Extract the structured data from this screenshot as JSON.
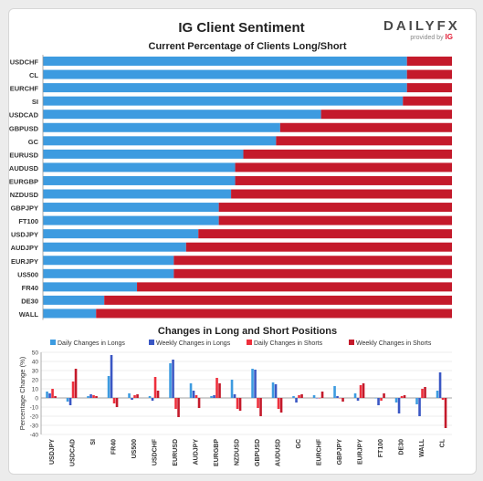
{
  "header": {
    "title": "IG Client Sentiment",
    "logo_text": "DAILYFX",
    "provided_by": "provided by",
    "provider": "IG"
  },
  "colors": {
    "long": "#3d9be0",
    "short": "#c41a2b",
    "weekly_long": "#3a57c4",
    "daily_short": "#ee2f3c",
    "axis": "#666666",
    "grid": "#dddddd"
  },
  "chart_data": [
    {
      "type": "bar",
      "orientation": "horizontal",
      "stacked": true,
      "title": "Current Percentage of Clients Long/Short",
      "categories": [
        "USDCHF",
        "CL",
        "EURCHF",
        "SI",
        "USDCAD",
        "GBPUSD",
        "GC",
        "EURUSD",
        "AUDUSD",
        "EURGBP",
        "NZDUSD",
        "GBPJPY",
        "FT100",
        "USDJPY",
        "AUDJPY",
        "EURJPY",
        "US500",
        "FR40",
        "DE30",
        "WALL"
      ],
      "series": [
        {
          "values": [
            89,
            89,
            89,
            88,
            68,
            58,
            57,
            49,
            47,
            47,
            46,
            43,
            43,
            38,
            35,
            32,
            32,
            23,
            15,
            13
          ]
        },
        {
          "values": [
            11,
            11,
            11,
            12,
            32,
            42,
            43,
            51,
            53,
            53,
            54,
            57,
            57,
            62,
            65,
            68,
            68,
            77,
            85,
            87
          ]
        }
      ],
      "xlim": [
        0,
        100
      ]
    },
    {
      "type": "bar",
      "title": "Changes in Long and Short Positions",
      "ylabel": "Percentage Change (%)",
      "ylim": [
        -40,
        50
      ],
      "yticks": [
        -40,
        -30,
        -20,
        -10,
        0,
        10,
        20,
        30,
        40,
        50
      ],
      "categories": [
        "USDJPY",
        "USDCAD",
        "SI",
        "FR40",
        "US500",
        "USDCHF",
        "EURUSD",
        "AUDJPY",
        "EURGBP",
        "NZDUSD",
        "GBPUSD",
        "AUDUSD",
        "GC",
        "EURCHF",
        "GBPJPY",
        "EURJPY",
        "FT100",
        "DE30",
        "WALL",
        "CL"
      ],
      "series": [
        {
          "name": "Daily Changes in Longs",
          "values": [
            7,
            -4,
            2,
            24,
            5,
            2,
            38,
            16,
            2,
            20,
            32,
            17,
            2,
            3,
            13,
            5,
            0,
            -5,
            -7,
            8
          ]
        },
        {
          "name": "Weekly Changes in Longs",
          "values": [
            5,
            -8,
            4,
            47,
            -2,
            -3,
            42,
            8,
            3,
            4,
            31,
            15,
            -5,
            0,
            2,
            -3,
            -8,
            -17,
            -20,
            28
          ]
        },
        {
          "name": "Daily Changes in Shorts",
          "values": [
            10,
            18,
            3,
            -6,
            3,
            23,
            -12,
            3,
            22,
            -12,
            -11,
            -12,
            3,
            0,
            0,
            14,
            -3,
            2,
            10,
            -2
          ]
        },
        {
          "name": "Weekly Changes in Shorts",
          "values": [
            2,
            32,
            2,
            -10,
            4,
            8,
            -21,
            -11,
            16,
            -14,
            -20,
            -16,
            4,
            7,
            -4,
            16,
            5,
            3,
            12,
            -33
          ]
        }
      ],
      "legend": "top"
    }
  ]
}
